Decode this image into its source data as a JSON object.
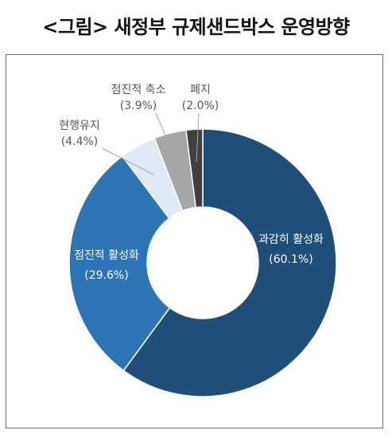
{
  "title": "<그림> 새정부 규제샌드박스 운영방향",
  "chart_data": {
    "type": "pie",
    "donut": true,
    "slices": [
      {
        "label": "과감히 활성화",
        "value": 60.1,
        "display": "(60.1%)",
        "color": "#1f4e79"
      },
      {
        "label": "점진적 활성화",
        "value": 29.6,
        "display": "(29.6%)",
        "color": "#2e75b6"
      },
      {
        "label": "현행유지",
        "value": 4.4,
        "display": "(4.4%)",
        "color": "#deebf7"
      },
      {
        "label": "점진적 축소",
        "value": 3.9,
        "display": "(3.9%)",
        "color": "#a6a6a6"
      },
      {
        "label": "폐지",
        "value": 2.0,
        "display": "(2.0%)",
        "color": "#404040"
      }
    ],
    "label_color_dark": "#ffffff",
    "label_color_outside": "#555555"
  }
}
